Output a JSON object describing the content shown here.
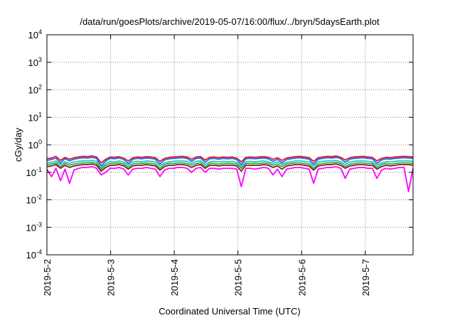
{
  "chart_data": {
    "type": "line",
    "title": "/data/run/goesPlots/archive/2019-05-07/16:00/flux/../bryn/5daysEarth.plot",
    "xlabel": "Coordinated Universal Time (UTC)",
    "ylabel": "cGy/day",
    "yscale": "log",
    "ylim": [
      0.0001,
      10000
    ],
    "xlim": [
      "2019-05-02",
      "2019-05-07T18:00"
    ],
    "y_ticks": [
      {
        "base": "10",
        "exp": "-4",
        "value": 0.0001
      },
      {
        "base": "10",
        "exp": "-3",
        "value": 0.001
      },
      {
        "base": "10",
        "exp": "-2",
        "value": 0.01
      },
      {
        "base": "10",
        "exp": "-1",
        "value": 0.1
      },
      {
        "base": "10",
        "exp": "0",
        "value": 1
      },
      {
        "base": "10",
        "exp": "1",
        "value": 10
      },
      {
        "base": "10",
        "exp": "2",
        "value": 100
      },
      {
        "base": "10",
        "exp": "3",
        "value": 1000
      },
      {
        "base": "10",
        "exp": "4",
        "value": 10000
      }
    ],
    "x_ticks": [
      {
        "label": "2019-5-2",
        "date": "2019-05-02"
      },
      {
        "label": "2019-5-3",
        "date": "2019-05-03"
      },
      {
        "label": "2019-5-4",
        "date": "2019-05-04"
      },
      {
        "label": "2019-5-5",
        "date": "2019-05-05"
      },
      {
        "label": "2019-5-6",
        "date": "2019-05-06"
      },
      {
        "label": "2019-5-7",
        "date": "2019-05-07"
      }
    ],
    "grid": true,
    "series": [
      {
        "color": "#e8102a",
        "values": [
          0.31,
          0.33,
          0.38,
          0.27,
          0.35,
          0.3,
          0.34,
          0.36,
          0.38,
          0.37,
          0.39,
          0.36,
          0.22,
          0.3,
          0.36,
          0.35,
          0.37,
          0.33,
          0.26,
          0.34,
          0.36,
          0.35,
          0.37,
          0.36,
          0.34,
          0.25,
          0.32,
          0.35,
          0.36,
          0.37,
          0.38,
          0.36,
          0.3,
          0.36,
          0.37,
          0.28,
          0.35,
          0.36,
          0.34,
          0.36,
          0.35,
          0.36,
          0.33,
          0.24,
          0.35,
          0.36,
          0.35,
          0.36,
          0.37,
          0.35,
          0.3,
          0.34,
          0.27,
          0.33,
          0.35,
          0.37,
          0.38,
          0.36,
          0.34,
          0.25,
          0.34,
          0.36,
          0.38,
          0.37,
          0.39,
          0.35,
          0.28,
          0.34,
          0.36,
          0.37,
          0.38,
          0.36,
          0.35,
          0.26,
          0.32,
          0.35,
          0.34,
          0.36,
          0.37,
          0.38,
          0.37,
          0.36
        ]
      },
      {
        "color": "#1f6fe0",
        "values": [
          0.27,
          0.29,
          0.33,
          0.22,
          0.31,
          0.26,
          0.3,
          0.32,
          0.34,
          0.33,
          0.35,
          0.32,
          0.17,
          0.26,
          0.32,
          0.31,
          0.33,
          0.29,
          0.21,
          0.3,
          0.32,
          0.31,
          0.33,
          0.32,
          0.3,
          0.2,
          0.28,
          0.31,
          0.32,
          0.33,
          0.34,
          0.32,
          0.25,
          0.32,
          0.33,
          0.23,
          0.31,
          0.32,
          0.3,
          0.32,
          0.31,
          0.32,
          0.29,
          0.19,
          0.31,
          0.32,
          0.31,
          0.32,
          0.33,
          0.31,
          0.25,
          0.3,
          0.22,
          0.29,
          0.31,
          0.33,
          0.34,
          0.32,
          0.3,
          0.2,
          0.3,
          0.32,
          0.34,
          0.33,
          0.35,
          0.31,
          0.23,
          0.3,
          0.32,
          0.33,
          0.34,
          0.32,
          0.31,
          0.21,
          0.28,
          0.31,
          0.3,
          0.32,
          0.33,
          0.34,
          0.33,
          0.32
        ]
      },
      {
        "color": "#2ec4c4",
        "values": [
          0.22,
          0.23,
          0.26,
          0.19,
          0.24,
          0.21,
          0.24,
          0.25,
          0.26,
          0.26,
          0.27,
          0.25,
          0.15,
          0.21,
          0.25,
          0.24,
          0.26,
          0.23,
          0.18,
          0.24,
          0.25,
          0.24,
          0.26,
          0.25,
          0.24,
          0.17,
          0.22,
          0.24,
          0.25,
          0.26,
          0.26,
          0.25,
          0.21,
          0.25,
          0.26,
          0.19,
          0.24,
          0.25,
          0.24,
          0.25,
          0.24,
          0.25,
          0.23,
          0.16,
          0.24,
          0.25,
          0.24,
          0.25,
          0.26,
          0.24,
          0.21,
          0.24,
          0.19,
          0.23,
          0.24,
          0.26,
          0.26,
          0.25,
          0.24,
          0.17,
          0.24,
          0.25,
          0.26,
          0.26,
          0.27,
          0.24,
          0.19,
          0.24,
          0.25,
          0.26,
          0.26,
          0.25,
          0.24,
          0.18,
          0.22,
          0.24,
          0.24,
          0.25,
          0.26,
          0.26,
          0.26,
          0.25
        ]
      },
      {
        "color": "#2bb34a",
        "values": [
          0.19,
          0.2,
          0.22,
          0.16,
          0.21,
          0.18,
          0.2,
          0.21,
          0.22,
          0.22,
          0.23,
          0.21,
          0.13,
          0.18,
          0.21,
          0.21,
          0.22,
          0.2,
          0.15,
          0.2,
          0.21,
          0.21,
          0.22,
          0.21,
          0.2,
          0.14,
          0.19,
          0.21,
          0.21,
          0.22,
          0.22,
          0.21,
          0.18,
          0.21,
          0.22,
          0.16,
          0.21,
          0.21,
          0.2,
          0.21,
          0.21,
          0.21,
          0.2,
          0.14,
          0.21,
          0.21,
          0.21,
          0.21,
          0.22,
          0.21,
          0.18,
          0.2,
          0.16,
          0.2,
          0.21,
          0.22,
          0.22,
          0.21,
          0.2,
          0.14,
          0.2,
          0.21,
          0.22,
          0.22,
          0.23,
          0.21,
          0.16,
          0.2,
          0.21,
          0.22,
          0.22,
          0.21,
          0.21,
          0.15,
          0.19,
          0.21,
          0.2,
          0.21,
          0.22,
          0.22,
          0.22,
          0.21
        ]
      },
      {
        "color": "#8b1a1a",
        "values": [
          0.16,
          0.17,
          0.19,
          0.14,
          0.18,
          0.15,
          0.17,
          0.18,
          0.19,
          0.19,
          0.2,
          0.18,
          0.11,
          0.15,
          0.18,
          0.18,
          0.19,
          0.17,
          0.13,
          0.17,
          0.18,
          0.18,
          0.19,
          0.18,
          0.17,
          0.12,
          0.16,
          0.18,
          0.18,
          0.19,
          0.19,
          0.18,
          0.15,
          0.18,
          0.19,
          0.14,
          0.18,
          0.18,
          0.17,
          0.18,
          0.18,
          0.18,
          0.17,
          0.11,
          0.18,
          0.18,
          0.18,
          0.18,
          0.19,
          0.18,
          0.15,
          0.17,
          0.13,
          0.17,
          0.18,
          0.19,
          0.19,
          0.18,
          0.17,
          0.12,
          0.17,
          0.18,
          0.19,
          0.19,
          0.2,
          0.18,
          0.14,
          0.17,
          0.18,
          0.19,
          0.19,
          0.18,
          0.18,
          0.13,
          0.16,
          0.18,
          0.17,
          0.18,
          0.19,
          0.19,
          0.19,
          0.18
        ]
      },
      {
        "color": "#ff00ff",
        "values": [
          0.13,
          0.07,
          0.14,
          0.05,
          0.13,
          0.04,
          0.12,
          0.14,
          0.15,
          0.15,
          0.16,
          0.14,
          0.08,
          0.1,
          0.14,
          0.14,
          0.15,
          0.13,
          0.08,
          0.13,
          0.14,
          0.14,
          0.15,
          0.14,
          0.13,
          0.07,
          0.12,
          0.14,
          0.14,
          0.15,
          0.15,
          0.14,
          0.1,
          0.14,
          0.15,
          0.1,
          0.14,
          0.14,
          0.13,
          0.14,
          0.14,
          0.14,
          0.13,
          0.03,
          0.14,
          0.14,
          0.13,
          0.14,
          0.15,
          0.14,
          0.08,
          0.13,
          0.07,
          0.13,
          0.14,
          0.15,
          0.15,
          0.14,
          0.13,
          0.04,
          0.13,
          0.14,
          0.15,
          0.15,
          0.16,
          0.14,
          0.06,
          0.13,
          0.14,
          0.15,
          0.15,
          0.14,
          0.14,
          0.06,
          0.12,
          0.14,
          0.13,
          0.14,
          0.15,
          0.15,
          0.02,
          0.14
        ]
      }
    ]
  }
}
